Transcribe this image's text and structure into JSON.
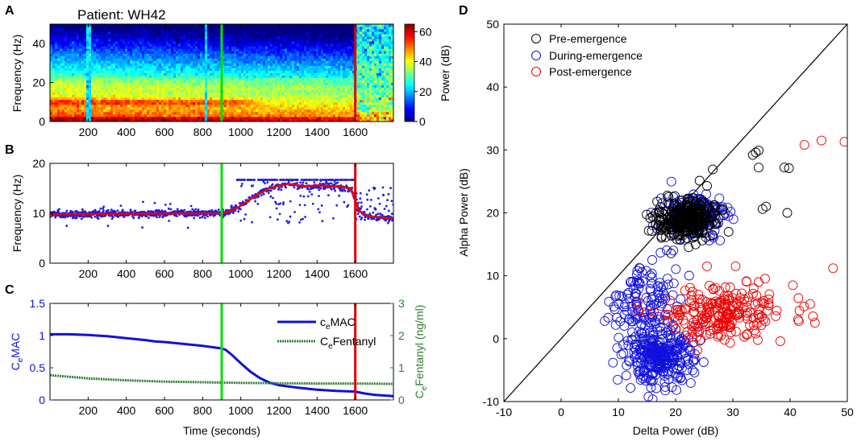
{
  "figure": {
    "panel_letters": [
      "A",
      "B",
      "C",
      "D"
    ],
    "patient_title": "Patient: WH42"
  },
  "chart_data": [
    {
      "panel": "A",
      "type": "heatmap",
      "title": "Patient: WH42",
      "xlabel": "",
      "ylabel": "Frequency (Hz)",
      "xlim": [
        0,
        1800
      ],
      "ylim": [
        0,
        50
      ],
      "xticks": [
        200,
        400,
        600,
        800,
        1000,
        1200,
        1400,
        1600
      ],
      "yticks": [
        0,
        20,
        40
      ],
      "colorbar": {
        "label": "Power (dB)",
        "range": [
          0,
          65
        ],
        "ticks": [
          0,
          20,
          40,
          60
        ]
      },
      "description_values": {
        "alpha_band_hz": 10,
        "alpha_band_end_s": 1150,
        "emergence_end_s": 1600
      },
      "vlines": [
        {
          "x": 900,
          "color": "#00e000"
        },
        {
          "x": 1600,
          "color": "#dd0000"
        }
      ]
    },
    {
      "panel": "B",
      "type": "scatter",
      "xlabel": "",
      "ylabel": "Frequency (Hz)",
      "xlim": [
        0,
        1800
      ],
      "ylim": [
        0,
        20
      ],
      "xticks": [
        200,
        400,
        600,
        800,
        1000,
        1200,
        1400,
        1600
      ],
      "yticks": [
        0,
        10,
        20
      ],
      "smooth_line": {
        "color": "#ee0000",
        "x": [
          0,
          900,
          950,
          1000,
          1050,
          1100,
          1150,
          1200,
          1250,
          1300,
          1350,
          1400,
          1450,
          1500,
          1550,
          1580,
          1600,
          1620,
          1650,
          1700,
          1750,
          1800
        ],
        "y": [
          9.8,
          10.0,
          10.5,
          11.5,
          12.8,
          14.0,
          15.0,
          15.5,
          15.9,
          15.6,
          15.4,
          15.6,
          15.5,
          15.3,
          15.2,
          14.8,
          12.5,
          10.5,
          9.6,
          9.3,
          9.1,
          9.0
        ]
      },
      "vlines": [
        {
          "x": 900,
          "color": "#00e000"
        },
        {
          "x": 1600,
          "color": "#dd0000"
        }
      ]
    },
    {
      "panel": "C",
      "type": "line",
      "xlabel": "Time (seconds)",
      "ylabel": "C",
      "ylabel_sub": "e",
      "ylabel_rest": "MAC",
      "ylabel_right": "C",
      "ylabel_right_sub": "e",
      "ylabel_right_rest": "Fentanyl (ng/ml)",
      "xlim": [
        0,
        1800
      ],
      "ylim": [
        0,
        1.5
      ],
      "ylim_right": [
        0,
        3
      ],
      "xticks": [
        200,
        400,
        600,
        800,
        1000,
        1200,
        1400,
        1600
      ],
      "yticks": [
        0,
        0.5,
        1,
        1.5
      ],
      "yticks_right": [
        0,
        1,
        2,
        3
      ],
      "series": [
        {
          "name": "MAC",
          "name_prefix": "c",
          "name_sub": "e",
          "axis": "left",
          "color": "#1010dd",
          "x": [
            0,
            100,
            200,
            300,
            400,
            500,
            550,
            600,
            700,
            800,
            900,
            920,
            950,
            1000,
            1050,
            1100,
            1150,
            1200,
            1300,
            1400,
            1500,
            1600,
            1650,
            1700,
            1800
          ],
          "y": [
            1.02,
            1.02,
            1.01,
            0.99,
            0.96,
            0.93,
            0.91,
            0.9,
            0.87,
            0.84,
            0.8,
            0.78,
            0.71,
            0.57,
            0.44,
            0.34,
            0.27,
            0.23,
            0.19,
            0.16,
            0.14,
            0.13,
            0.1,
            0.08,
            0.06
          ]
        },
        {
          "name": "Fentanyl",
          "name_prefix": "C",
          "name_sub": "e",
          "axis": "right",
          "color": "#2e7d32",
          "x": [
            0,
            100,
            200,
            400,
            600,
            800,
            1000,
            1200,
            1400,
            1600,
            1800
          ],
          "y": [
            0.77,
            0.72,
            0.67,
            0.61,
            0.57,
            0.55,
            0.53,
            0.52,
            0.51,
            0.51,
            0.5
          ]
        }
      ],
      "vlines": [
        {
          "x": 900,
          "color": "#00e000"
        },
        {
          "x": 1600,
          "color": "#dd0000"
        }
      ]
    },
    {
      "panel": "D",
      "type": "scatter",
      "xlabel": "Delta Power (dB)",
      "ylabel": "Alpha Power (dB)",
      "xlim": [
        -10,
        50
      ],
      "ylim": [
        -10,
        50
      ],
      "xticks": [
        -10,
        0,
        10,
        20,
        30,
        40,
        50
      ],
      "yticks": [
        -10,
        0,
        10,
        20,
        30,
        40,
        50
      ],
      "identity_line": true,
      "series": [
        {
          "name": "Pre-emergence",
          "color": "#000000",
          "clusters": [
            {
              "cx": 22,
              "cy": 19,
              "sx": 2.5,
              "sy": 1.6,
              "n": 300
            }
          ],
          "extra_points": [
            [
              26.5,
              26.9
            ],
            [
              33.5,
              29.2
            ],
            [
              34,
              29.6
            ],
            [
              34.5,
              29.9
            ],
            [
              34.5,
              27.2
            ],
            [
              39,
              27.2
            ],
            [
              39.8,
              27.1
            ],
            [
              39.5,
              20.0
            ],
            [
              35.8,
              21.0
            ],
            [
              35.2,
              20.6
            ]
          ]
        },
        {
          "name": "During-emergence",
          "color": "#1010dd",
          "clusters": [
            {
              "cx": 23,
              "cy": 19.5,
              "sx": 3.0,
              "sy": 1.8,
              "n": 160
            },
            {
              "cx": 17,
              "cy": -3,
              "sx": 3.0,
              "sy": 2.0,
              "n": 260
            },
            {
              "cx": 15,
              "cy": 6,
              "sx": 3.5,
              "sy": 4.5,
              "n": 150
            }
          ],
          "extra_points": []
        },
        {
          "name": "Post-emergence",
          "color": "#ee0000",
          "clusters": [
            {
              "cx": 28,
              "cy": 4,
              "sx": 5.5,
              "sy": 2.2,
              "n": 220
            }
          ],
          "extra_points": [
            [
              42.5,
              30.8
            ],
            [
              45.5,
              31.5
            ],
            [
              49.5,
              31.3
            ],
            [
              47.5,
              11.2
            ],
            [
              25.5,
              11.5
            ],
            [
              30.5,
              11.5
            ],
            [
              34.5,
              9.0
            ],
            [
              40.5,
              8.5
            ],
            [
              43.5,
              5.5
            ]
          ]
        }
      ]
    }
  ]
}
